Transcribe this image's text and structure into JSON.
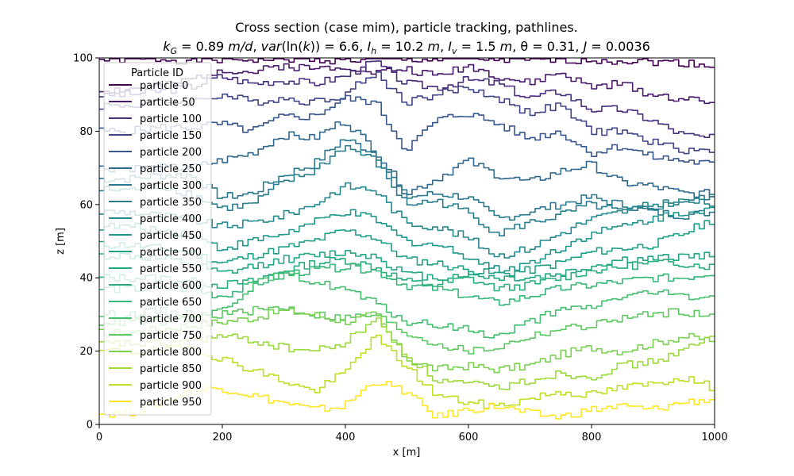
{
  "chart_data": {
    "type": "line",
    "title_line1": "Cross section (case mim), particle tracking, pathlines.",
    "title_line2_parts": [
      {
        "text": "k",
        "style": "italic"
      },
      {
        "text": "G",
        "style": "italic-sub"
      },
      {
        "text": " = 0.89 ",
        "style": "normal"
      },
      {
        "text": "m/d",
        "style": "italic"
      },
      {
        "text": ", ",
        "style": "normal"
      },
      {
        "text": "var",
        "style": "italic"
      },
      {
        "text": "(ln(",
        "style": "normal"
      },
      {
        "text": "k",
        "style": "italic"
      },
      {
        "text": ")) = 6.6, ",
        "style": "normal"
      },
      {
        "text": "I",
        "style": "italic"
      },
      {
        "text": "h",
        "style": "italic-sub"
      },
      {
        "text": " = 10.2 ",
        "style": "normal"
      },
      {
        "text": "m",
        "style": "italic"
      },
      {
        "text": ", ",
        "style": "normal"
      },
      {
        "text": "I",
        "style": "italic"
      },
      {
        "text": "v",
        "style": "italic-sub"
      },
      {
        "text": " = 1.5 ",
        "style": "normal"
      },
      {
        "text": "m",
        "style": "italic"
      },
      {
        "text": ", θ = 0.31, ",
        "style": "normal"
      },
      {
        "text": "J",
        "style": "italic"
      },
      {
        "text": " = 0.0036",
        "style": "normal"
      }
    ],
    "xlabel": "x [m]",
    "ylabel": "z [m]",
    "xlim": [
      0,
      1000
    ],
    "ylim": [
      0,
      100
    ],
    "xticks": [
      0,
      200,
      400,
      600,
      800,
      1000
    ],
    "yticks": [
      0,
      20,
      40,
      60,
      80,
      100
    ],
    "grid": false,
    "legend": {
      "title": "Particle ID",
      "placement": "upper-left"
    },
    "series": [
      {
        "name": "particle 0",
        "color": "#440154",
        "x": [
          0,
          50,
          100,
          150,
          200,
          250,
          300,
          350,
          400,
          450,
          500,
          550,
          600,
          650,
          700,
          750,
          800,
          850,
          900,
          950,
          1000
        ],
        "y": [
          99.5,
          99.6,
          99.7,
          99.3,
          99.5,
          99.6,
          99.8,
          99.5,
          99.4,
          99.6,
          99.7,
          99.5,
          99.8,
          99.6,
          99.2,
          99.4,
          99.5,
          99.3,
          99,
          98.7,
          98
        ]
      },
      {
        "name": "particle 50",
        "color": "#481a6c",
        "x": [
          0,
          50,
          100,
          150,
          200,
          250,
          300,
          350,
          400,
          450,
          500,
          550,
          600,
          650,
          700,
          750,
          800,
          850,
          900,
          950,
          1000
        ],
        "y": [
          91,
          91.5,
          92,
          94,
          97,
          96,
          98,
          97,
          98,
          96,
          97,
          95,
          98,
          95,
          93,
          96,
          92,
          93,
          90,
          89,
          87.5
        ]
      },
      {
        "name": "particle 100",
        "color": "#472f7d",
        "x": [
          0,
          50,
          100,
          150,
          200,
          250,
          300,
          350,
          400,
          450,
          500,
          550,
          600,
          650,
          700,
          750,
          800,
          850,
          900,
          950,
          1000
        ],
        "y": [
          90,
          90,
          91,
          92,
          95,
          93,
          94,
          93,
          95,
          99,
          93,
          92,
          94,
          93,
          89,
          91,
          86,
          86,
          83,
          79,
          78
        ]
      },
      {
        "name": "particle 150",
        "color": "#414487",
        "x": [
          0,
          50,
          100,
          150,
          200,
          250,
          300,
          350,
          400,
          450,
          500,
          550,
          600,
          650,
          700,
          750,
          800,
          850,
          900,
          950,
          1000
        ],
        "y": [
          87,
          87,
          88,
          88,
          90,
          88,
          89,
          88,
          90,
          96,
          88,
          90,
          92,
          89,
          85,
          87,
          80,
          80,
          77,
          75,
          74.5
        ]
      },
      {
        "name": "particle 200",
        "color": "#39568c",
        "x": [
          0,
          50,
          100,
          150,
          200,
          250,
          300,
          350,
          400,
          450,
          500,
          550,
          600,
          650,
          700,
          750,
          800,
          850,
          900,
          950,
          1000
        ],
        "y": [
          80,
          80,
          81,
          81,
          82,
          80,
          84,
          84,
          89,
          88,
          75,
          83,
          85,
          82,
          78,
          80,
          74,
          76,
          73,
          72,
          71
        ]
      },
      {
        "name": "particle 250",
        "color": "#31688e",
        "x": [
          0,
          50,
          100,
          150,
          200,
          250,
          300,
          350,
          400,
          450,
          500,
          550,
          600,
          650,
          700,
          750,
          800,
          850,
          900,
          950,
          1000
        ],
        "y": [
          70,
          70,
          70,
          70,
          72,
          74,
          79,
          78,
          83,
          75,
          63,
          67,
          72,
          68,
          66,
          69,
          71,
          66,
          65,
          63,
          63
        ]
      },
      {
        "name": "particle 300",
        "color": "#2a788e",
        "x": [
          0,
          50,
          100,
          150,
          200,
          250,
          300,
          350,
          400,
          450,
          500,
          550,
          600,
          650,
          700,
          750,
          800,
          850,
          900,
          950,
          1000
        ],
        "y": [
          67,
          67,
          68,
          68,
          62,
          63,
          68,
          71,
          78,
          74,
          62,
          63,
          62,
          56,
          58,
          60,
          62,
          60,
          58,
          57,
          58
        ]
      },
      {
        "name": "particle 350",
        "color": "#287d8e",
        "x": [
          0,
          50,
          100,
          150,
          200,
          250,
          300,
          350,
          400,
          450,
          500,
          550,
          600,
          650,
          700,
          750,
          800,
          850,
          900,
          950,
          1000
        ],
        "y": [
          64,
          64,
          65,
          63,
          59,
          60,
          66,
          69,
          76,
          72,
          60,
          61,
          58,
          52,
          55,
          57,
          60,
          58,
          59,
          61,
          62
        ]
      },
      {
        "name": "particle 400",
        "color": "#23898e",
        "x": [
          0,
          50,
          100,
          150,
          200,
          250,
          300,
          350,
          400,
          450,
          500,
          550,
          600,
          650,
          700,
          750,
          800,
          850,
          900,
          950,
          1000
        ],
        "y": [
          58,
          58,
          57,
          56,
          54,
          55,
          57,
          60,
          65,
          64,
          55,
          54,
          51,
          46,
          48,
          52,
          56,
          58,
          60,
          61,
          60
        ]
      },
      {
        "name": "particle 450",
        "color": "#1f968b",
        "x": [
          0,
          50,
          100,
          150,
          200,
          250,
          300,
          350,
          400,
          450,
          500,
          550,
          600,
          650,
          700,
          750,
          800,
          850,
          900,
          950,
          1000
        ],
        "y": [
          54,
          54,
          53,
          52,
          48,
          50,
          52,
          55,
          58,
          56,
          50,
          49,
          46,
          42,
          44,
          48,
          52,
          54,
          56,
          58,
          59
        ]
      },
      {
        "name": "particle 500",
        "color": "#1fa187",
        "x": [
          0,
          50,
          100,
          150,
          200,
          250,
          300,
          350,
          400,
          450,
          500,
          550,
          600,
          650,
          700,
          750,
          800,
          850,
          900,
          950,
          1000
        ],
        "y": [
          49,
          49,
          48,
          47,
          44,
          46,
          48,
          50,
          53,
          51,
          45,
          44,
          42,
          41,
          42,
          44,
          47,
          48,
          49,
          52,
          56
        ]
      },
      {
        "name": "particle 550",
        "color": "#22a884",
        "x": [
          0,
          50,
          100,
          150,
          200,
          250,
          300,
          350,
          400,
          450,
          500,
          550,
          600,
          650,
          700,
          750,
          800,
          850,
          900,
          950,
          1000
        ],
        "y": [
          46,
          46,
          45,
          44,
          41,
          43,
          45,
          46,
          47,
          46,
          41,
          40,
          41,
          40,
          40,
          41,
          43,
          45,
          45,
          46,
          46
        ]
      },
      {
        "name": "particle 600",
        "color": "#29af7f",
        "x": [
          0,
          50,
          100,
          150,
          200,
          250,
          300,
          350,
          400,
          450,
          500,
          550,
          600,
          650,
          700,
          750,
          800,
          850,
          900,
          950,
          1000
        ],
        "y": [
          40,
          40,
          40,
          39,
          38,
          39,
          42,
          44,
          45,
          43,
          39,
          38,
          40,
          37,
          38,
          40,
          42,
          43,
          44,
          44,
          43
        ]
      },
      {
        "name": "particle 650",
        "color": "#35b779",
        "x": [
          0,
          50,
          100,
          150,
          200,
          250,
          300,
          350,
          400,
          450,
          500,
          550,
          600,
          650,
          700,
          750,
          800,
          850,
          900,
          950,
          1000
        ],
        "y": [
          37,
          37,
          37,
          37,
          35,
          38,
          41,
          42,
          43,
          42,
          38,
          37,
          35,
          33,
          35,
          37,
          38,
          39,
          40,
          40,
          41.5
        ]
      },
      {
        "name": "particle 700",
        "color": "#44bf70",
        "x": [
          0,
          50,
          100,
          150,
          200,
          250,
          300,
          350,
          400,
          450,
          500,
          550,
          600,
          650,
          700,
          750,
          800,
          850,
          900,
          950,
          1000
        ],
        "y": [
          30,
          30,
          31,
          30,
          31,
          38,
          41,
          39,
          37,
          33,
          28,
          27,
          26,
          24,
          28,
          31,
          32,
          35,
          36,
          35,
          35
        ]
      },
      {
        "name": "particle 750",
        "color": "#5ec962",
        "x": [
          0,
          50,
          100,
          150,
          200,
          250,
          300,
          350,
          400,
          450,
          500,
          550,
          600,
          650,
          700,
          750,
          800,
          850,
          900,
          950,
          1000
        ],
        "y": [
          28,
          28,
          28,
          29,
          30,
          31,
          32,
          30,
          29,
          30,
          25,
          22,
          20,
          21,
          24,
          26,
          27,
          29,
          30,
          31,
          29
        ]
      },
      {
        "name": "particle 800",
        "color": "#7ad151",
        "x": [
          0,
          50,
          100,
          150,
          200,
          250,
          300,
          350,
          400,
          450,
          500,
          550,
          600,
          650,
          700,
          750,
          800,
          850,
          900,
          950,
          1000
        ],
        "y": [
          25,
          25,
          26,
          27,
          28,
          29,
          31,
          30,
          28,
          30,
          18,
          15,
          16,
          15,
          16,
          19,
          21,
          20,
          22,
          24,
          23
        ]
      },
      {
        "name": "particle 850",
        "color": "#9bd93c",
        "x": [
          0,
          50,
          100,
          150,
          200,
          250,
          300,
          350,
          400,
          450,
          500,
          550,
          600,
          650,
          700,
          750,
          800,
          850,
          900,
          950,
          1000
        ],
        "y": [
          22,
          22,
          22,
          23,
          24,
          23,
          21,
          20,
          22,
          29,
          19,
          12,
          11,
          10,
          12,
          14,
          13,
          16,
          17,
          20,
          24
        ]
      },
      {
        "name": "particle 900",
        "color": "#bddf26",
        "x": [
          0,
          50,
          100,
          150,
          200,
          250,
          300,
          350,
          400,
          450,
          500,
          550,
          600,
          650,
          700,
          750,
          800,
          850,
          900,
          950,
          1000
        ],
        "y": [
          20,
          20,
          20,
          21,
          18,
          15,
          12,
          9,
          14,
          24,
          16,
          8,
          6,
          5,
          7,
          9,
          8,
          10,
          11,
          13,
          10
        ]
      },
      {
        "name": "particle 950",
        "color": "#fde725",
        "x": [
          0,
          50,
          100,
          150,
          200,
          250,
          300,
          350,
          400,
          450,
          500,
          550,
          600,
          650,
          700,
          750,
          800,
          850,
          900,
          950,
          1000
        ],
        "y": [
          3,
          3,
          6,
          9,
          10,
          8,
          6,
          4,
          5,
          12,
          9,
          2,
          4,
          5,
          3,
          2,
          4,
          5,
          4,
          6,
          7
        ]
      }
    ]
  }
}
